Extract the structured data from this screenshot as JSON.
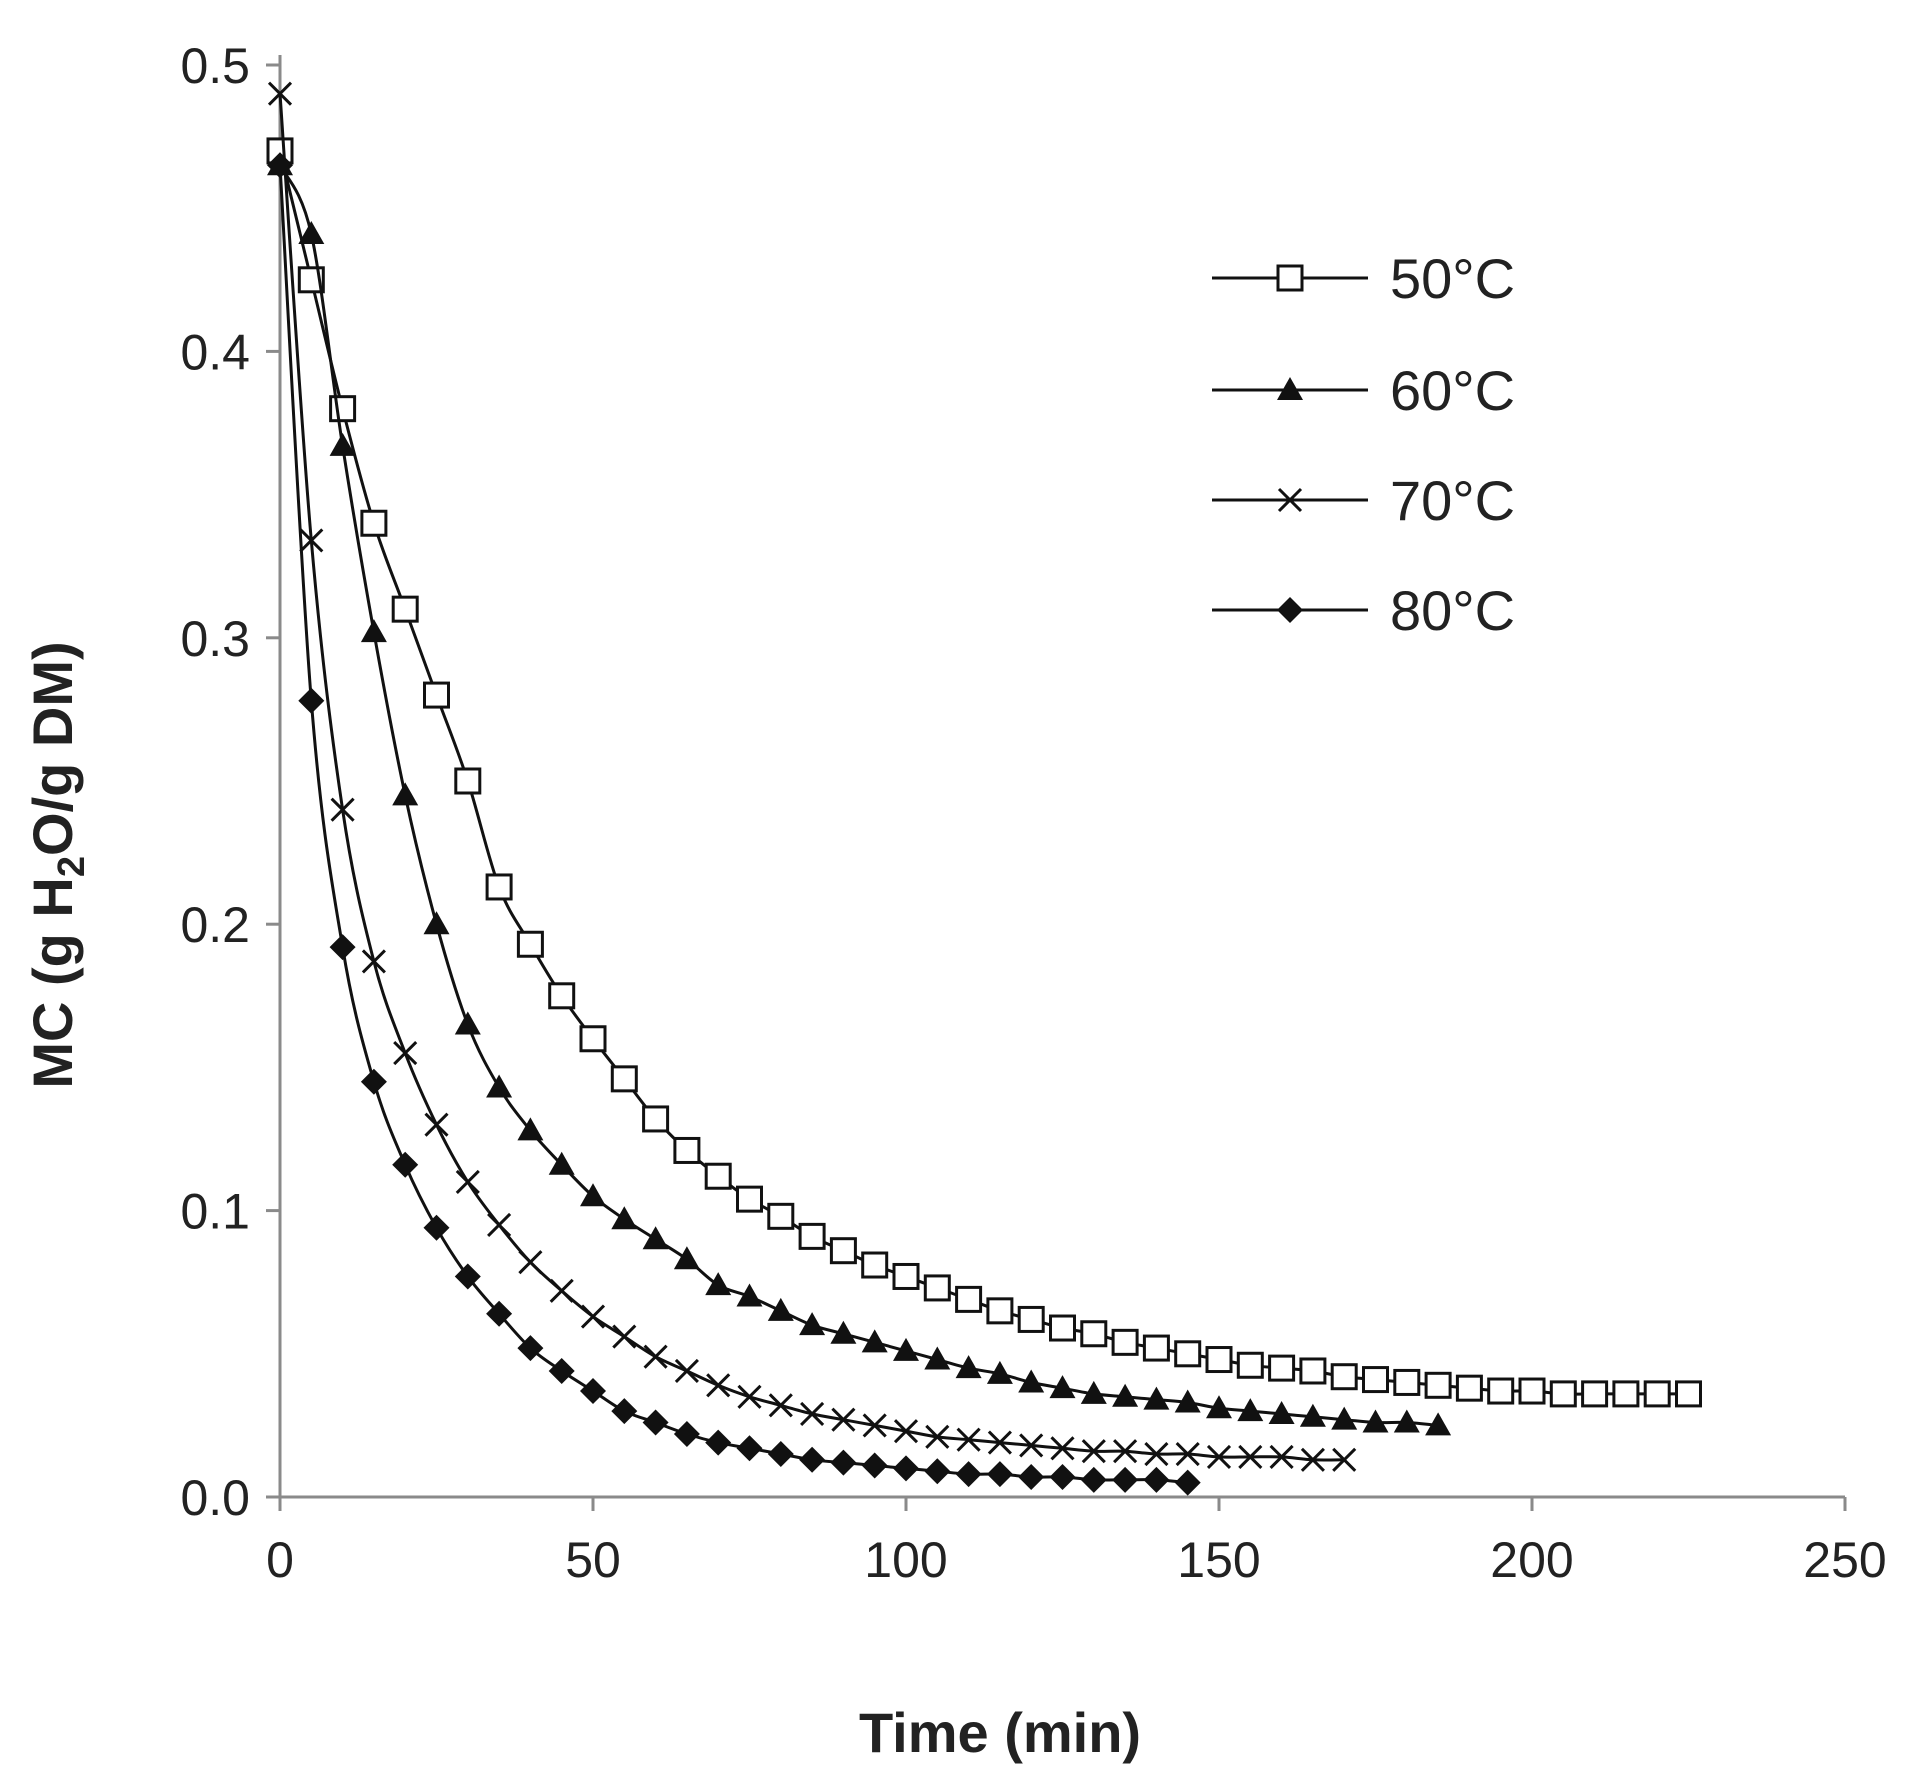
{
  "chart_data": {
    "type": "line",
    "title": "",
    "xlabel": "Time (min)",
    "ylabel": {
      "prefix": "MC (g H",
      "subscript": "2",
      "suffix": "O/g DM)"
    },
    "xlim": [
      0,
      250
    ],
    "ylim": [
      0,
      0.5
    ],
    "xticks": [
      0,
      50,
      100,
      150,
      200,
      250
    ],
    "xtick_labels": [
      "0",
      "50",
      "100",
      "150",
      "200",
      "250"
    ],
    "yticks": [
      0,
      0.1,
      0.2,
      0.3,
      0.4,
      0.5
    ],
    "ytick_labels": [
      "0.0",
      "0.1",
      "0.2",
      "0.3",
      "0.4",
      "0.5"
    ],
    "grid": false,
    "legend_position": "top-right",
    "series": [
      {
        "name": "50°C",
        "marker": "square-open",
        "x": [
          0,
          5,
          10,
          15,
          20,
          25,
          30,
          35,
          40,
          45,
          50,
          55,
          60,
          65,
          70,
          75,
          80,
          85,
          90,
          95,
          100,
          105,
          110,
          115,
          120,
          125,
          130,
          135,
          140,
          145,
          150,
          155,
          160,
          165,
          170,
          175,
          180,
          185,
          190,
          195,
          200,
          205,
          210,
          215,
          220,
          225
        ],
        "y": [
          0.47,
          0.425,
          0.38,
          0.34,
          0.31,
          0.28,
          0.25,
          0.213,
          0.193,
          0.175,
          0.16,
          0.146,
          0.132,
          0.121,
          0.112,
          0.104,
          0.098,
          0.091,
          0.086,
          0.081,
          0.077,
          0.073,
          0.069,
          0.065,
          0.062,
          0.059,
          0.057,
          0.054,
          0.052,
          0.05,
          0.048,
          0.046,
          0.045,
          0.044,
          0.042,
          0.041,
          0.04,
          0.039,
          0.038,
          0.037,
          0.037,
          0.036,
          0.036,
          0.036,
          0.036,
          0.036
        ]
      },
      {
        "name": "60°C",
        "marker": "triangle-filled",
        "x": [
          0,
          5,
          10,
          15,
          20,
          25,
          30,
          35,
          40,
          45,
          50,
          55,
          60,
          65,
          70,
          75,
          80,
          85,
          90,
          95,
          100,
          105,
          110,
          115,
          120,
          125,
          130,
          135,
          140,
          145,
          150,
          155,
          160,
          165,
          170,
          175,
          180,
          185
        ],
        "y": [
          0.465,
          0.441,
          0.367,
          0.302,
          0.245,
          0.2,
          0.165,
          0.143,
          0.128,
          0.116,
          0.105,
          0.097,
          0.09,
          0.083,
          0.074,
          0.07,
          0.065,
          0.06,
          0.057,
          0.054,
          0.051,
          0.048,
          0.045,
          0.043,
          0.04,
          0.038,
          0.036,
          0.035,
          0.034,
          0.033,
          0.031,
          0.03,
          0.029,
          0.028,
          0.027,
          0.026,
          0.026,
          0.025
        ]
      },
      {
        "name": "70°C",
        "marker": "x",
        "x": [
          0,
          5,
          10,
          15,
          20,
          25,
          30,
          35,
          40,
          45,
          50,
          55,
          60,
          65,
          70,
          75,
          80,
          85,
          90,
          95,
          100,
          105,
          110,
          115,
          120,
          125,
          130,
          135,
          140,
          145,
          150,
          155,
          160,
          165,
          170
        ],
        "y": [
          0.49,
          0.334,
          0.24,
          0.187,
          0.155,
          0.13,
          0.11,
          0.095,
          0.082,
          0.072,
          0.063,
          0.056,
          0.049,
          0.044,
          0.039,
          0.035,
          0.032,
          0.029,
          0.027,
          0.025,
          0.023,
          0.021,
          0.02,
          0.019,
          0.018,
          0.017,
          0.016,
          0.016,
          0.015,
          0.015,
          0.014,
          0.014,
          0.014,
          0.013,
          0.013
        ]
      },
      {
        "name": "80°C",
        "marker": "diamond-filled",
        "x": [
          0,
          5,
          10,
          15,
          20,
          25,
          30,
          35,
          40,
          45,
          50,
          55,
          60,
          65,
          70,
          75,
          80,
          85,
          90,
          95,
          100,
          105,
          110,
          115,
          120,
          125,
          130,
          135,
          140,
          145
        ],
        "y": [
          0.465,
          0.278,
          0.192,
          0.145,
          0.116,
          0.094,
          0.077,
          0.064,
          0.052,
          0.044,
          0.037,
          0.03,
          0.026,
          0.022,
          0.019,
          0.017,
          0.015,
          0.013,
          0.012,
          0.011,
          0.01,
          0.009,
          0.008,
          0.008,
          0.007,
          0.007,
          0.006,
          0.006,
          0.006,
          0.005
        ]
      }
    ]
  }
}
